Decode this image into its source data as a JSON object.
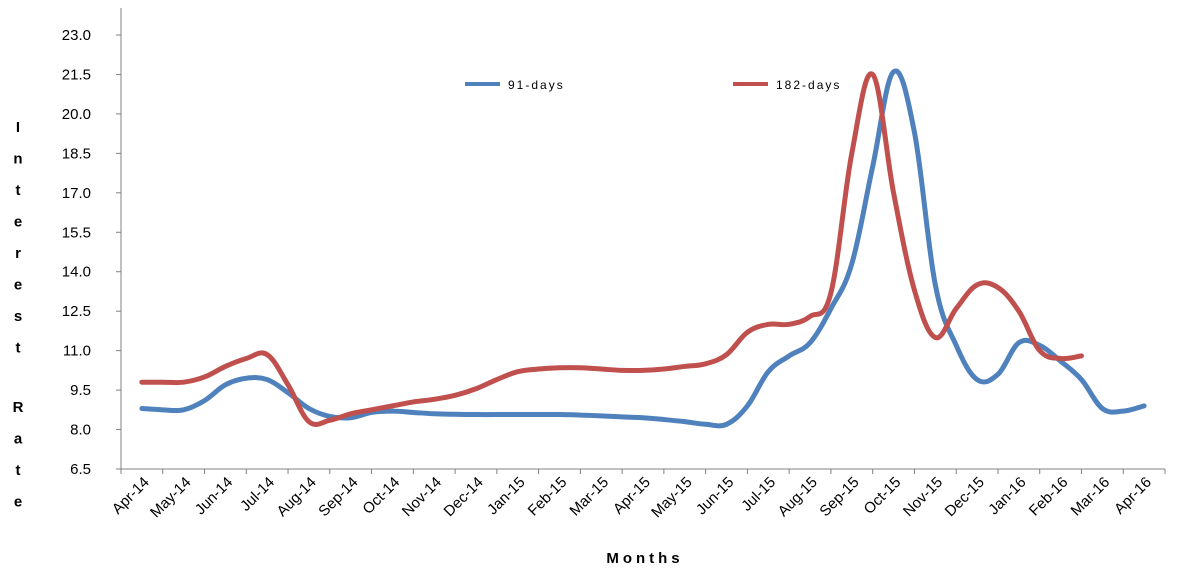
{
  "chart_data": {
    "type": "line",
    "xlabel": "Months",
    "ylabel": "Interest Rate",
    "ylim": [
      6.5,
      23.0
    ],
    "yticks": [
      "6.5",
      "8.0",
      "9.5",
      "11.0",
      "12.5",
      "14.0",
      "15.5",
      "17.0",
      "18.5",
      "20.0",
      "21.5",
      "23.0"
    ],
    "categories": [
      "Apr-14",
      "May-14",
      "Jun-14",
      "Jul-14",
      "Aug-14",
      "Sep-14",
      "Oct-14",
      "Nov-14",
      "Dec-14",
      "Jan-15",
      "Feb-15",
      "Mar-15",
      "Apr-15",
      "May-15",
      "Jun-15",
      "Jul-15",
      "Aug-15",
      "Sep-15",
      "Oct-15",
      "Nov-15",
      "Dec-15",
      "Jan-16",
      "Feb-16",
      "Mar-16",
      "Apr-16"
    ],
    "x": [
      0,
      0.5,
      1,
      1.5,
      2,
      2.5,
      3,
      3.5,
      4,
      4.5,
      5,
      5.5,
      6,
      6.5,
      7,
      7.5,
      8,
      8.5,
      9,
      9.5,
      10,
      10.5,
      11,
      11.5,
      12,
      12.5,
      13,
      13.5,
      14,
      14.5,
      15,
      15.5,
      16,
      16.5,
      17,
      17.5,
      18,
      18.5,
      19,
      19.5,
      20,
      20.5,
      21,
      21.5,
      22,
      22.5,
      23,
      23.5,
      24
    ],
    "grid": false,
    "legend": "top",
    "series": [
      {
        "name": "91-days",
        "color": "#4F81BD",
        "values": [
          8.8,
          8.75,
          8.75,
          9.1,
          9.7,
          9.95,
          9.9,
          9.4,
          8.8,
          8.5,
          8.45,
          8.65,
          8.7,
          8.65,
          8.6,
          8.58,
          8.57,
          8.57,
          8.57,
          8.57,
          8.57,
          8.55,
          8.52,
          8.48,
          8.45,
          8.38,
          8.3,
          8.2,
          8.2,
          8.9,
          10.2,
          10.8,
          11.3,
          12.6,
          14.3,
          18.0,
          21.6,
          19.3,
          13.5,
          11.2,
          9.9,
          10.1,
          11.3,
          11.2,
          10.6,
          9.9,
          8.8,
          8.7,
          8.9
        ]
      },
      {
        "name": "182-days",
        "color": "#C0504D",
        "values": [
          9.8,
          9.8,
          9.8,
          10.0,
          10.4,
          10.7,
          10.85,
          9.7,
          8.3,
          8.35,
          8.6,
          8.75,
          8.9,
          9.05,
          9.15,
          9.3,
          9.55,
          9.9,
          10.2,
          10.3,
          10.35,
          10.35,
          10.3,
          10.25,
          10.25,
          10.3,
          10.4,
          10.5,
          10.85,
          11.7,
          12.0,
          12.0,
          12.3,
          13.2,
          18.5,
          21.5,
          17.0,
          13.3,
          11.5,
          12.6,
          13.5,
          13.4,
          12.5,
          11.0,
          10.7,
          10.8,
          null,
          null,
          null
        ]
      }
    ]
  }
}
